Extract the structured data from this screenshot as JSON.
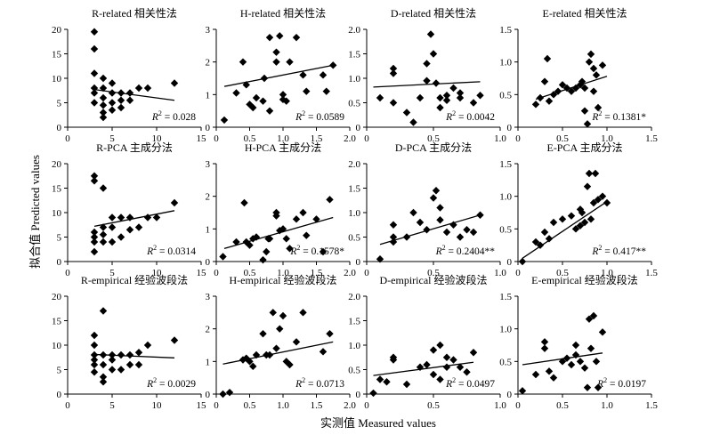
{
  "figure": {
    "ylabel": "拟合值 Predicted values",
    "xlabel": "实测值 Measured values"
  },
  "chart_data": [
    {
      "type": "scatter",
      "title": "R-related 相关性法",
      "xlim": [
        0,
        15
      ],
      "ylim": [
        0,
        20
      ],
      "xticks": [
        "0",
        "5",
        "10",
        "15"
      ],
      "yticks": [
        "0",
        "5",
        "10",
        "15",
        "20"
      ],
      "r2": "0.028",
      "sig": "",
      "points": [
        [
          3,
          19.5
        ],
        [
          3,
          16
        ],
        [
          3,
          11
        ],
        [
          3,
          8
        ],
        [
          3,
          7
        ],
        [
          3,
          5
        ],
        [
          4,
          10
        ],
        [
          4,
          8
        ],
        [
          4,
          6
        ],
        [
          4,
          4.5
        ],
        [
          4,
          3
        ],
        [
          4,
          2
        ],
        [
          5,
          9
        ],
        [
          5,
          7
        ],
        [
          5,
          5
        ],
        [
          5,
          3.5
        ],
        [
          6,
          7
        ],
        [
          6,
          5.5
        ],
        [
          6,
          4
        ],
        [
          7,
          7
        ],
        [
          7,
          5.5
        ],
        [
          8,
          8
        ],
        [
          9,
          8
        ],
        [
          12,
          9
        ]
      ],
      "trend": [
        [
          3,
          7.7
        ],
        [
          12,
          5.5
        ]
      ]
    },
    {
      "type": "scatter",
      "title": "H-related 相关性法",
      "xlim": [
        0,
        2.0
      ],
      "ylim": [
        0,
        3
      ],
      "xticks": [
        "0",
        "0.5",
        "1.0",
        "1.5",
        "2.0"
      ],
      "yticks": [
        "0",
        "1",
        "2",
        "3"
      ],
      "r2": "0.0589",
      "sig": "",
      "points": [
        [
          0.12,
          0.22
        ],
        [
          0.3,
          1.05
        ],
        [
          0.4,
          2.0
        ],
        [
          0.45,
          1.3
        ],
        [
          0.5,
          0.7
        ],
        [
          0.55,
          0.6
        ],
        [
          0.6,
          0.9
        ],
        [
          0.7,
          0.8
        ],
        [
          0.72,
          1.5
        ],
        [
          0.8,
          2.75
        ],
        [
          0.8,
          0.5
        ],
        [
          0.9,
          2.3
        ],
        [
          0.9,
          2.0
        ],
        [
          0.95,
          2.8
        ],
        [
          1.0,
          1.0
        ],
        [
          1.0,
          0.85
        ],
        [
          1.05,
          0.8
        ],
        [
          1.1,
          2.0
        ],
        [
          1.2,
          2.75
        ],
        [
          1.3,
          1.6
        ],
        [
          1.35,
          1.1
        ],
        [
          1.6,
          1.6
        ],
        [
          1.65,
          1.1
        ],
        [
          1.75,
          1.9
        ]
      ],
      "trend": [
        [
          0.12,
          1.25
        ],
        [
          1.75,
          1.9
        ]
      ]
    },
    {
      "type": "scatter",
      "title": "D-related 相关性法",
      "xlim": [
        0,
        1.0
      ],
      "ylim": [
        0,
        2.0
      ],
      "xticks": [
        "0",
        "0.5",
        "1.0"
      ],
      "yticks": [
        "0",
        "0.5",
        "1.0",
        "1.5",
        "2.0"
      ],
      "r2": "0.0042",
      "sig": "",
      "points": [
        [
          0.1,
          0.6
        ],
        [
          0.2,
          1.2
        ],
        [
          0.2,
          1.1
        ],
        [
          0.2,
          0.5
        ],
        [
          0.3,
          0.3
        ],
        [
          0.35,
          0.1
        ],
        [
          0.4,
          0.6
        ],
        [
          0.45,
          1.3
        ],
        [
          0.45,
          0.95
        ],
        [
          0.48,
          1.9
        ],
        [
          0.5,
          1.5
        ],
        [
          0.52,
          0.9
        ],
        [
          0.55,
          0.6
        ],
        [
          0.55,
          0.4
        ],
        [
          0.6,
          0.65
        ],
        [
          0.6,
          0.55
        ],
        [
          0.65,
          0.8
        ],
        [
          0.7,
          0.7
        ],
        [
          0.7,
          0.6
        ],
        [
          0.8,
          0.5
        ],
        [
          0.85,
          0.65
        ]
      ],
      "trend": [
        [
          0.05,
          0.82
        ],
        [
          0.85,
          0.93
        ]
      ]
    },
    {
      "type": "scatter",
      "title": "E-related 相关性法",
      "xlim": [
        0,
        1.5
      ],
      "ylim": [
        0,
        1.5
      ],
      "xticks": [
        "0",
        "0.5",
        "1.0",
        "1.5"
      ],
      "yticks": [
        "0",
        "0.5",
        "1.0",
        "1.5"
      ],
      "r2": "0.1381",
      "sig": "*",
      "points": [
        [
          0.2,
          0.35
        ],
        [
          0.25,
          0.45
        ],
        [
          0.3,
          0.7
        ],
        [
          0.33,
          1.05
        ],
        [
          0.35,
          0.4
        ],
        [
          0.4,
          0.5
        ],
        [
          0.45,
          0.55
        ],
        [
          0.5,
          0.65
        ],
        [
          0.55,
          0.6
        ],
        [
          0.6,
          0.55
        ],
        [
          0.65,
          0.6
        ],
        [
          0.7,
          0.65
        ],
        [
          0.72,
          0.7
        ],
        [
          0.75,
          0.6
        ],
        [
          0.75,
          0.25
        ],
        [
          0.78,
          0.05
        ],
        [
          0.8,
          1.0
        ],
        [
          0.82,
          1.12
        ],
        [
          0.85,
          0.9
        ],
        [
          0.85,
          0.55
        ],
        [
          0.88,
          0.8
        ],
        [
          0.9,
          0.3
        ],
        [
          0.95,
          0.95
        ]
      ],
      "trend": [
        [
          0.2,
          0.43
        ],
        [
          1.0,
          0.78
        ]
      ]
    },
    {
      "type": "scatter",
      "title": "R-PCA 主成分法",
      "xlim": [
        0,
        15
      ],
      "ylim": [
        0,
        20
      ],
      "xticks": [
        "0",
        "5",
        "10",
        "15"
      ],
      "yticks": [
        "0",
        "5",
        "10",
        "15",
        "20"
      ],
      "r2": "0.0314",
      "sig": "",
      "points": [
        [
          3,
          17.5
        ],
        [
          3,
          16.5
        ],
        [
          3,
          6
        ],
        [
          3,
          5
        ],
        [
          3,
          4
        ],
        [
          3,
          2
        ],
        [
          4,
          15
        ],
        [
          4,
          7
        ],
        [
          4,
          5.5
        ],
        [
          4,
          4
        ],
        [
          5,
          9
        ],
        [
          5,
          7
        ],
        [
          5,
          4
        ],
        [
          6,
          9
        ],
        [
          6,
          5
        ],
        [
          7,
          9
        ],
        [
          7,
          6.5
        ],
        [
          8,
          7
        ],
        [
          9,
          9
        ],
        [
          10,
          9
        ],
        [
          12,
          12
        ]
      ],
      "trend": [
        [
          3,
          7.2
        ],
        [
          12,
          10.4
        ]
      ]
    },
    {
      "type": "scatter",
      "title": "H-PCA 主成分法",
      "xlim": [
        0,
        2.0
      ],
      "ylim": [
        0,
        3
      ],
      "xticks": [
        "0",
        "0.5",
        "1.0",
        "1.5",
        "2.0"
      ],
      "yticks": [
        "0",
        "1",
        "2",
        "3"
      ],
      "r2": "0.1578",
      "sig": "*",
      "points": [
        [
          0.1,
          0.15
        ],
        [
          0.3,
          0.6
        ],
        [
          0.42,
          1.8
        ],
        [
          0.45,
          0.6
        ],
        [
          0.5,
          0.5
        ],
        [
          0.55,
          0.7
        ],
        [
          0.6,
          0.75
        ],
        [
          0.7,
          0.05
        ],
        [
          0.75,
          0.3
        ],
        [
          0.78,
          0.7
        ],
        [
          0.8,
          0.7
        ],
        [
          0.9,
          1.5
        ],
        [
          0.9,
          1.4
        ],
        [
          0.95,
          0.95
        ],
        [
          1.0,
          1.0
        ],
        [
          1.05,
          0.7
        ],
        [
          1.1,
          0.4
        ],
        [
          1.2,
          1.3
        ],
        [
          1.3,
          1.5
        ],
        [
          1.35,
          0.8
        ],
        [
          1.5,
          1.3
        ],
        [
          1.6,
          0.3
        ],
        [
          1.7,
          1.9
        ]
      ],
      "trend": [
        [
          0.12,
          0.4
        ],
        [
          1.75,
          1.35
        ]
      ]
    },
    {
      "type": "scatter",
      "title": "D-PCA 主成分法",
      "xlim": [
        0,
        1.0
      ],
      "ylim": [
        0,
        2.0
      ],
      "xticks": [
        "0",
        "0.5",
        "1.0"
      ],
      "yticks": [
        "0",
        "0.5",
        "1.0",
        "1.5",
        "2.0"
      ],
      "r2": "0.2404",
      "sig": "**",
      "points": [
        [
          0.1,
          0.05
        ],
        [
          0.2,
          0.75
        ],
        [
          0.2,
          0.5
        ],
        [
          0.2,
          0.4
        ],
        [
          0.3,
          0.5
        ],
        [
          0.35,
          1.0
        ],
        [
          0.4,
          0.8
        ],
        [
          0.45,
          0.65
        ],
        [
          0.5,
          1.3
        ],
        [
          0.52,
          1.45
        ],
        [
          0.55,
          1.1
        ],
        [
          0.55,
          0.85
        ],
        [
          0.6,
          0.6
        ],
        [
          0.65,
          0.75
        ],
        [
          0.7,
          0.5
        ],
        [
          0.75,
          0.65
        ],
        [
          0.8,
          0.6
        ],
        [
          0.85,
          0.95
        ]
      ],
      "trend": [
        [
          0.1,
          0.35
        ],
        [
          0.85,
          0.95
        ]
      ]
    },
    {
      "type": "scatter",
      "title": "E-PCA 主成分法",
      "xlim": [
        0,
        1.5
      ],
      "ylim": [
        0,
        1.5
      ],
      "xticks": [
        "0",
        "0.5",
        "1.0",
        "1.5"
      ],
      "yticks": [
        "0",
        "0.5",
        "1.0",
        "1.5"
      ],
      "r2": "0.417",
      "sig": "**",
      "points": [
        [
          0.05,
          0.0
        ],
        [
          0.2,
          0.3
        ],
        [
          0.25,
          0.25
        ],
        [
          0.3,
          0.45
        ],
        [
          0.35,
          0.35
        ],
        [
          0.4,
          0.6
        ],
        [
          0.5,
          0.65
        ],
        [
          0.6,
          0.7
        ],
        [
          0.65,
          0.5
        ],
        [
          0.7,
          0.55
        ],
        [
          0.7,
          0.8
        ],
        [
          0.72,
          0.75
        ],
        [
          0.75,
          0.6
        ],
        [
          0.78,
          1.15
        ],
        [
          0.8,
          1.35
        ],
        [
          0.82,
          0.65
        ],
        [
          0.85,
          0.9
        ],
        [
          0.87,
          1.35
        ],
        [
          0.9,
          0.95
        ],
        [
          0.95,
          1.0
        ],
        [
          1.0,
          0.9
        ]
      ],
      "trend": [
        [
          0.05,
          0.05
        ],
        [
          1.0,
          0.92
        ]
      ]
    },
    {
      "type": "scatter",
      "title": "R-empirical 经验波段法",
      "xlim": [
        0,
        15
      ],
      "ylim": [
        0,
        20
      ],
      "xticks": [
        "0",
        "5",
        "10",
        "15"
      ],
      "yticks": [
        "0",
        "5",
        "10",
        "15",
        "20"
      ],
      "r2": "0.0029",
      "sig": "",
      "points": [
        [
          3,
          12
        ],
        [
          3,
          10
        ],
        [
          3,
          8
        ],
        [
          3,
          7
        ],
        [
          3,
          6
        ],
        [
          3,
          4.5
        ],
        [
          4,
          17
        ],
        [
          4,
          8
        ],
        [
          4,
          6
        ],
        [
          4,
          3.5
        ],
        [
          4,
          2.5
        ],
        [
          5,
          8
        ],
        [
          5,
          7
        ],
        [
          5,
          5
        ],
        [
          6,
          8
        ],
        [
          6,
          5
        ],
        [
          7,
          8
        ],
        [
          7,
          6
        ],
        [
          8,
          8.5
        ],
        [
          8,
          6
        ],
        [
          9,
          10
        ],
        [
          12,
          11
        ]
      ],
      "trend": [
        [
          3,
          8.1
        ],
        [
          12,
          7.4
        ]
      ]
    },
    {
      "type": "scatter",
      "title": "H-empirical 经验波段法",
      "xlim": [
        0,
        2.0
      ],
      "ylim": [
        0,
        3
      ],
      "xticks": [
        "0",
        "0.5",
        "1.0",
        "1.5",
        "2.0"
      ],
      "yticks": [
        "0",
        "1",
        "2",
        "3"
      ],
      "r2": "0.0713",
      "sig": "",
      "points": [
        [
          0.1,
          0.0
        ],
        [
          0.2,
          0.05
        ],
        [
          0.4,
          1.05
        ],
        [
          0.45,
          1.1
        ],
        [
          0.5,
          1.0
        ],
        [
          0.55,
          0.85
        ],
        [
          0.6,
          1.2
        ],
        [
          0.7,
          1.85
        ],
        [
          0.75,
          1.2
        ],
        [
          0.8,
          1.2
        ],
        [
          0.85,
          2.5
        ],
        [
          0.9,
          1.4
        ],
        [
          0.95,
          2.0
        ],
        [
          1.0,
          2.4
        ],
        [
          1.05,
          1.0
        ],
        [
          1.1,
          0.9
        ],
        [
          1.2,
          1.6
        ],
        [
          1.3,
          2.5
        ],
        [
          1.6,
          1.3
        ],
        [
          1.7,
          1.85
        ]
      ],
      "trend": [
        [
          0.1,
          0.92
        ],
        [
          1.75,
          1.6
        ]
      ]
    },
    {
      "type": "scatter",
      "title": "D-empirical 经验波段法",
      "xlim": [
        0,
        1.0
      ],
      "ylim": [
        0,
        2.0
      ],
      "xticks": [
        "0",
        "0.5",
        "1.0"
      ],
      "yticks": [
        "0",
        "0.5",
        "1.0",
        "1.5",
        "2.0"
      ],
      "r2": "0.0497",
      "sig": "",
      "points": [
        [
          0.05,
          0.02
        ],
        [
          0.1,
          0.3
        ],
        [
          0.15,
          0.25
        ],
        [
          0.2,
          0.7
        ],
        [
          0.2,
          0.75
        ],
        [
          0.3,
          0.2
        ],
        [
          0.4,
          0.55
        ],
        [
          0.45,
          0.6
        ],
        [
          0.5,
          0.9
        ],
        [
          0.55,
          1.0
        ],
        [
          0.5,
          0.4
        ],
        [
          0.55,
          0.3
        ],
        [
          0.6,
          0.75
        ],
        [
          0.6,
          0.55
        ],
        [
          0.65,
          0.7
        ],
        [
          0.7,
          0.55
        ],
        [
          0.75,
          0.45
        ],
        [
          0.8,
          0.85
        ]
      ],
      "trend": [
        [
          0.05,
          0.38
        ],
        [
          0.8,
          0.65
        ]
      ]
    },
    {
      "type": "scatter",
      "title": "E-empirical 经验波段法",
      "xlim": [
        0,
        1.5
      ],
      "ylim": [
        0,
        1.5
      ],
      "xticks": [
        "0",
        "0.5",
        "1.0",
        "1.5"
      ],
      "yticks": [
        "0",
        "0.5",
        "1.0",
        "1.5"
      ],
      "r2": "0.0197",
      "sig": "",
      "points": [
        [
          0.05,
          0.05
        ],
        [
          0.2,
          0.3
        ],
        [
          0.3,
          0.8
        ],
        [
          0.3,
          0.7
        ],
        [
          0.35,
          0.35
        ],
        [
          0.4,
          0.25
        ],
        [
          0.5,
          0.5
        ],
        [
          0.55,
          0.55
        ],
        [
          0.6,
          0.45
        ],
        [
          0.65,
          0.75
        ],
        [
          0.65,
          0.6
        ],
        [
          0.7,
          0.5
        ],
        [
          0.75,
          0.4
        ],
        [
          0.78,
          0.1
        ],
        [
          0.8,
          1.15
        ],
        [
          0.82,
          0.7
        ],
        [
          0.85,
          1.2
        ],
        [
          0.88,
          0.5
        ],
        [
          0.9,
          0.1
        ],
        [
          0.95,
          0.95
        ]
      ],
      "trend": [
        [
          0.05,
          0.45
        ],
        [
          0.95,
          0.63
        ]
      ]
    }
  ]
}
